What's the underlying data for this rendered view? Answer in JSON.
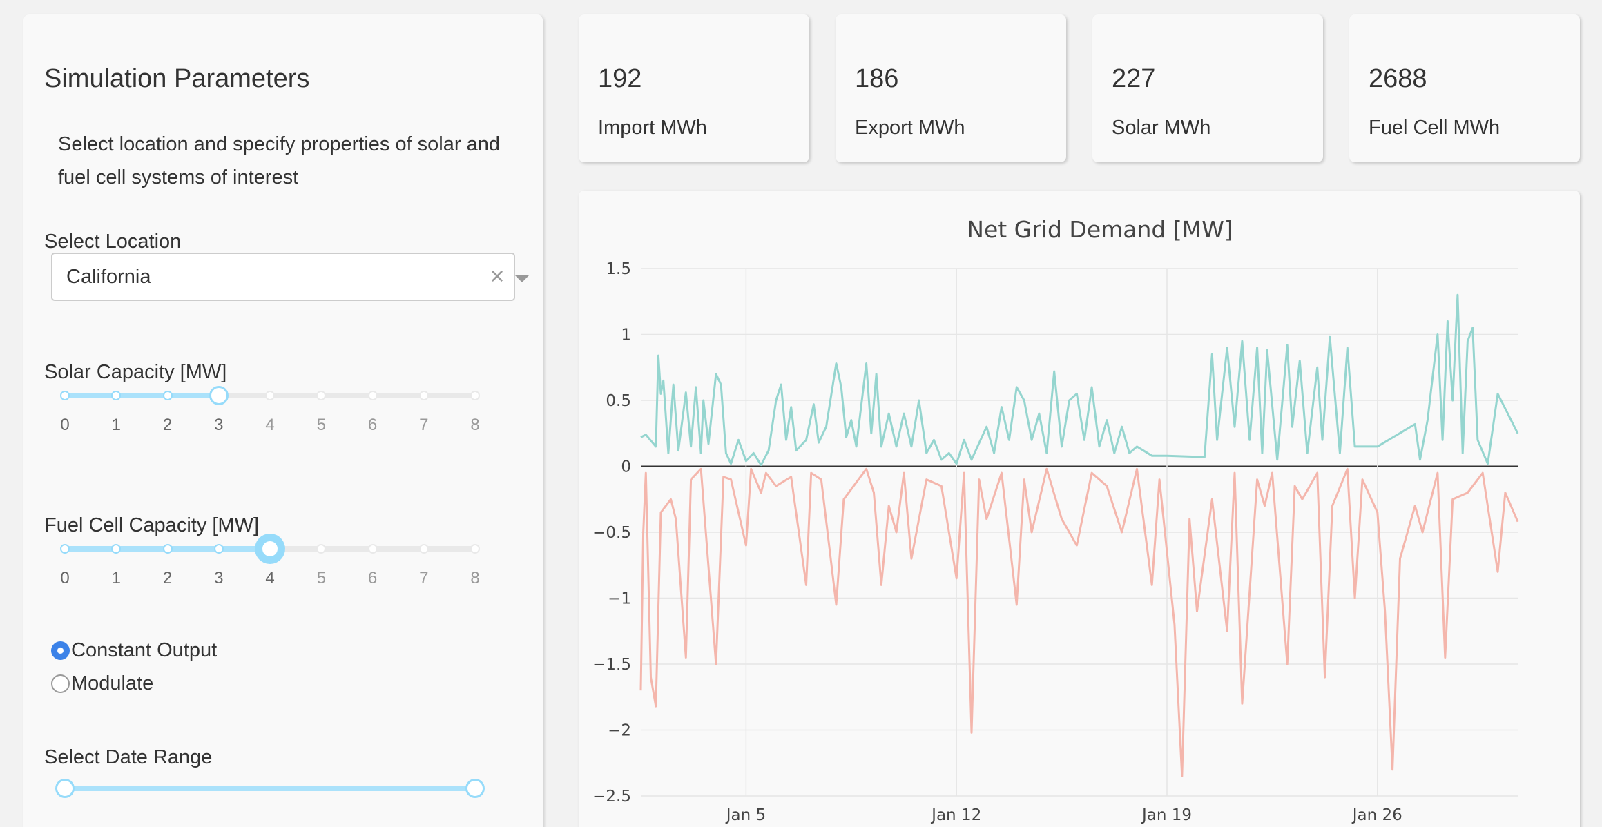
{
  "sidebar": {
    "title": "Simulation Parameters",
    "description": "Select location and specify properties of solar and fuel cell systems of interest",
    "location_label": "Select Location",
    "location_value": "California",
    "solar_label": "Solar Capacity [MW]",
    "solar_value": 3,
    "fuel_label": "Fuel Cell Capacity [MW]",
    "fuel_value": 4,
    "slider_marks": [
      "0",
      "1",
      "2",
      "3",
      "4",
      "5",
      "6",
      "7",
      "8"
    ],
    "radio_options": [
      {
        "label": "Constant Output",
        "checked": true
      },
      {
        "label": "Modulate",
        "checked": false
      }
    ],
    "date_range_label": "Select Date Range",
    "date_range": [
      0,
      1
    ]
  },
  "stats": [
    {
      "value": "192",
      "label": "Import MWh"
    },
    {
      "value": "186",
      "label": "Export MWh"
    },
    {
      "value": "227",
      "label": "Solar MWh"
    },
    {
      "value": "2688",
      "label": "Fuel Cell MWh"
    }
  ],
  "colors": {
    "positive_series": "#95d5cf",
    "negative_series": "#f4b6ac",
    "slider_accent": "#96dbfa",
    "radio_accent": "#3b82e8"
  },
  "chart_data": {
    "type": "line",
    "title": "Net Grid Demand [MW]",
    "xlabel": "",
    "ylabel": "",
    "x_ticks": [
      "Jan 5",
      "Jan 12",
      "Jan 19",
      "Jan 26"
    ],
    "y_ticks": [
      "1.5",
      "1",
      "0.5",
      "0",
      "−0.5",
      "−1",
      "−1.5",
      "−2",
      "−2.5"
    ],
    "ylim": [
      -2.5,
      1.5
    ],
    "xlim": [
      "2019-01-01 12:00",
      "2019-01-30 16:00"
    ],
    "grid": true,
    "series": [
      {
        "values": [
          [
            "2019-01-01 12:00",
            0.22
          ],
          [
            "2019-01-01 16:00",
            0.24
          ],
          [
            "2019-01-02 00:00",
            0.15
          ],
          [
            "2019-01-02 02:00",
            0.84
          ],
          [
            "2019-01-02 04:00",
            0.55
          ],
          [
            "2019-01-02 06:00",
            0.65
          ],
          [
            "2019-01-02 10:00",
            0.1
          ],
          [
            "2019-01-02 14:00",
            0.62
          ],
          [
            "2019-01-02 18:00",
            0.12
          ],
          [
            "2019-01-03 00:00",
            0.56
          ],
          [
            "2019-01-03 04:00",
            0.15
          ],
          [
            "2019-01-03 08:00",
            0.6
          ],
          [
            "2019-01-03 12:00",
            0.1
          ],
          [
            "2019-01-03 14:00",
            0.5
          ],
          [
            "2019-01-03 18:00",
            0.17
          ],
          [
            "2019-01-04 00:00",
            0.7
          ],
          [
            "2019-01-04 04:00",
            0.62
          ],
          [
            "2019-01-04 08:00",
            0.1
          ],
          [
            "2019-01-04 12:00",
            0.02
          ],
          [
            "2019-01-04 18:00",
            0.2
          ],
          [
            "2019-01-05 00:00",
            0.04
          ],
          [
            "2019-01-05 06:00",
            0.1
          ],
          [
            "2019-01-05 12:00",
            0.01
          ],
          [
            "2019-01-05 18:00",
            0.12
          ],
          [
            "2019-01-06 00:00",
            0.5
          ],
          [
            "2019-01-06 04:00",
            0.62
          ],
          [
            "2019-01-06 08:00",
            0.2
          ],
          [
            "2019-01-06 12:00",
            0.45
          ],
          [
            "2019-01-06 16:00",
            0.12
          ],
          [
            "2019-01-07 00:00",
            0.2
          ],
          [
            "2019-01-07 06:00",
            0.47
          ],
          [
            "2019-01-07 10:00",
            0.18
          ],
          [
            "2019-01-07 16:00",
            0.3
          ],
          [
            "2019-01-08 00:00",
            0.78
          ],
          [
            "2019-01-08 04:00",
            0.6
          ],
          [
            "2019-01-08 08:00",
            0.22
          ],
          [
            "2019-01-08 12:00",
            0.35
          ],
          [
            "2019-01-08 16:00",
            0.15
          ],
          [
            "2019-01-09 00:00",
            0.78
          ],
          [
            "2019-01-09 04:00",
            0.25
          ],
          [
            "2019-01-09 08:00",
            0.7
          ],
          [
            "2019-01-09 12:00",
            0.15
          ],
          [
            "2019-01-09 18:00",
            0.4
          ],
          [
            "2019-01-10 00:00",
            0.15
          ],
          [
            "2019-01-10 06:00",
            0.4
          ],
          [
            "2019-01-10 12:00",
            0.15
          ],
          [
            "2019-01-10 18:00",
            0.5
          ],
          [
            "2019-01-11 00:00",
            0.1
          ],
          [
            "2019-01-11 06:00",
            0.2
          ],
          [
            "2019-01-11 12:00",
            0.05
          ],
          [
            "2019-01-11 18:00",
            0.1
          ],
          [
            "2019-01-12 00:00",
            0.02
          ],
          [
            "2019-01-12 06:00",
            0.2
          ],
          [
            "2019-01-12 12:00",
            0.05
          ],
          [
            "2019-01-13 00:00",
            0.3
          ],
          [
            "2019-01-13 06:00",
            0.1
          ],
          [
            "2019-01-13 12:00",
            0.45
          ],
          [
            "2019-01-13 18:00",
            0.2
          ],
          [
            "2019-01-14 00:00",
            0.6
          ],
          [
            "2019-01-14 06:00",
            0.5
          ],
          [
            "2019-01-14 12:00",
            0.2
          ],
          [
            "2019-01-14 18:00",
            0.4
          ],
          [
            "2019-01-15 00:00",
            0.1
          ],
          [
            "2019-01-15 06:00",
            0.72
          ],
          [
            "2019-01-15 12:00",
            0.15
          ],
          [
            "2019-01-15 18:00",
            0.5
          ],
          [
            "2019-01-16 00:00",
            0.55
          ],
          [
            "2019-01-16 06:00",
            0.2
          ],
          [
            "2019-01-16 12:00",
            0.6
          ],
          [
            "2019-01-16 18:00",
            0.15
          ],
          [
            "2019-01-17 00:00",
            0.35
          ],
          [
            "2019-01-17 06:00",
            0.1
          ],
          [
            "2019-01-17 12:00",
            0.3
          ],
          [
            "2019-01-17 18:00",
            0.1
          ],
          [
            "2019-01-18 00:00",
            0.15
          ],
          [
            "2019-01-18 12:00",
            0.08
          ],
          [
            "2019-01-19 00:00",
            0.08
          ],
          [
            "2019-01-20 06:00",
            0.07
          ],
          [
            "2019-01-20 12:00",
            0.85
          ],
          [
            "2019-01-20 16:00",
            0.2
          ],
          [
            "2019-01-21 00:00",
            0.9
          ],
          [
            "2019-01-21 06:00",
            0.3
          ],
          [
            "2019-01-21 12:00",
            0.95
          ],
          [
            "2019-01-21 18:00",
            0.2
          ],
          [
            "2019-01-22 00:00",
            0.9
          ],
          [
            "2019-01-22 04:00",
            0.1
          ],
          [
            "2019-01-22 08:00",
            0.88
          ],
          [
            "2019-01-22 16:00",
            0.05
          ],
          [
            "2019-01-23 00:00",
            0.92
          ],
          [
            "2019-01-23 04:00",
            0.3
          ],
          [
            "2019-01-23 10:00",
            0.8
          ],
          [
            "2019-01-23 16:00",
            0.1
          ],
          [
            "2019-01-24 00:00",
            0.75
          ],
          [
            "2019-01-24 04:00",
            0.2
          ],
          [
            "2019-01-24 10:00",
            0.98
          ],
          [
            "2019-01-24 18:00",
            0.1
          ],
          [
            "2019-01-25 00:00",
            0.9
          ],
          [
            "2019-01-25 06:00",
            0.15
          ],
          [
            "2019-01-26 00:00",
            0.15
          ],
          [
            "2019-01-27 06:00",
            0.32
          ],
          [
            "2019-01-27 10:00",
            0.05
          ],
          [
            "2019-01-27 16:00",
            0.35
          ],
          [
            "2019-01-28 00:00",
            1.0
          ],
          [
            "2019-01-28 04:00",
            0.2
          ],
          [
            "2019-01-28 08:00",
            1.1
          ],
          [
            "2019-01-28 12:00",
            0.5
          ],
          [
            "2019-01-28 16:00",
            1.3
          ],
          [
            "2019-01-28 20:00",
            0.1
          ],
          [
            "2019-01-29 00:00",
            0.95
          ],
          [
            "2019-01-29 04:00",
            1.05
          ],
          [
            "2019-01-29 08:00",
            0.2
          ],
          [
            "2019-01-29 16:00",
            0.02
          ],
          [
            "2019-01-30 00:00",
            0.55
          ],
          [
            "2019-01-30 08:00",
            0.4
          ],
          [
            "2019-01-30 16:00",
            0.25
          ]
        ]
      },
      {
        "values": [
          [
            "2019-01-01 12:00",
            -1.7
          ],
          [
            "2019-01-01 14:00",
            -0.5
          ],
          [
            "2019-01-01 16:00",
            -0.05
          ],
          [
            "2019-01-01 20:00",
            -1.6
          ],
          [
            "2019-01-02 00:00",
            -1.82
          ],
          [
            "2019-01-02 04:00",
            -0.35
          ],
          [
            "2019-01-02 12:00",
            -0.25
          ],
          [
            "2019-01-02 16:00",
            -0.4
          ],
          [
            "2019-01-03 00:00",
            -1.45
          ],
          [
            "2019-01-03 04:00",
            -0.1
          ],
          [
            "2019-01-03 12:00",
            -0.02
          ],
          [
            "2019-01-04 00:00",
            -1.5
          ],
          [
            "2019-01-04 06:00",
            -0.08
          ],
          [
            "2019-01-04 12:00",
            -0.1
          ],
          [
            "2019-01-05 00:00",
            -0.6
          ],
          [
            "2019-01-05 04:00",
            -0.02
          ],
          [
            "2019-01-05 12:00",
            -0.2
          ],
          [
            "2019-01-05 16:00",
            -0.05
          ],
          [
            "2019-01-06 00:00",
            -0.15
          ],
          [
            "2019-01-06 12:00",
            -0.08
          ],
          [
            "2019-01-07 00:00",
            -0.9
          ],
          [
            "2019-01-07 04:00",
            -0.05
          ],
          [
            "2019-01-07 12:00",
            -0.1
          ],
          [
            "2019-01-08 00:00",
            -1.05
          ],
          [
            "2019-01-08 06:00",
            -0.25
          ],
          [
            "2019-01-09 00:00",
            -0.02
          ],
          [
            "2019-01-09 06:00",
            -0.2
          ],
          [
            "2019-01-09 12:00",
            -0.9
          ],
          [
            "2019-01-09 18:00",
            -0.3
          ],
          [
            "2019-01-10 00:00",
            -0.5
          ],
          [
            "2019-01-10 06:00",
            -0.05
          ],
          [
            "2019-01-10 12:00",
            -0.7
          ],
          [
            "2019-01-11 00:00",
            -0.1
          ],
          [
            "2019-01-11 12:00",
            -0.15
          ],
          [
            "2019-01-12 00:00",
            -0.85
          ],
          [
            "2019-01-12 06:00",
            -0.05
          ],
          [
            "2019-01-12 12:00",
            -2.02
          ],
          [
            "2019-01-12 18:00",
            -0.1
          ],
          [
            "2019-01-13 00:00",
            -0.4
          ],
          [
            "2019-01-13 12:00",
            -0.05
          ],
          [
            "2019-01-14 00:00",
            -1.05
          ],
          [
            "2019-01-14 06:00",
            -0.1
          ],
          [
            "2019-01-14 12:00",
            -0.5
          ],
          [
            "2019-01-15 00:00",
            -0.02
          ],
          [
            "2019-01-15 12:00",
            -0.4
          ],
          [
            "2019-01-16 00:00",
            -0.6
          ],
          [
            "2019-01-16 12:00",
            -0.05
          ],
          [
            "2019-01-17 00:00",
            -0.15
          ],
          [
            "2019-01-17 12:00",
            -0.5
          ],
          [
            "2019-01-18 00:00",
            -0.02
          ],
          [
            "2019-01-18 12:00",
            -0.9
          ],
          [
            "2019-01-18 18:00",
            -0.1
          ],
          [
            "2019-01-19 06:00",
            -1.2
          ],
          [
            "2019-01-19 12:00",
            -2.35
          ],
          [
            "2019-01-19 18:00",
            -0.4
          ],
          [
            "2019-01-20 00:00",
            -1.1
          ],
          [
            "2019-01-20 12:00",
            -0.25
          ],
          [
            "2019-01-21 00:00",
            -1.25
          ],
          [
            "2019-01-21 06:00",
            -0.05
          ],
          [
            "2019-01-21 12:00",
            -1.8
          ],
          [
            "2019-01-22 00:00",
            -0.1
          ],
          [
            "2019-01-22 06:00",
            -0.3
          ],
          [
            "2019-01-22 12:00",
            -0.05
          ],
          [
            "2019-01-23 00:00",
            -1.5
          ],
          [
            "2019-01-23 06:00",
            -0.15
          ],
          [
            "2019-01-23 12:00",
            -0.25
          ],
          [
            "2019-01-24 00:00",
            -0.05
          ],
          [
            "2019-01-24 06:00",
            -1.6
          ],
          [
            "2019-01-24 12:00",
            -0.3
          ],
          [
            "2019-01-25 00:00",
            -0.02
          ],
          [
            "2019-01-25 06:00",
            -1.0
          ],
          [
            "2019-01-25 12:00",
            -0.1
          ],
          [
            "2019-01-26 00:00",
            -0.35
          ],
          [
            "2019-01-26 06:00",
            -1.1
          ],
          [
            "2019-01-26 12:00",
            -2.3
          ],
          [
            "2019-01-26 18:00",
            -0.7
          ],
          [
            "2019-01-27 06:00",
            -0.3
          ],
          [
            "2019-01-27 12:00",
            -0.5
          ],
          [
            "2019-01-28 00:00",
            -0.05
          ],
          [
            "2019-01-28 06:00",
            -1.45
          ],
          [
            "2019-01-28 12:00",
            -0.25
          ],
          [
            "2019-01-29 00:00",
            -0.2
          ],
          [
            "2019-01-29 12:00",
            -0.05
          ],
          [
            "2019-01-30 00:00",
            -0.8
          ],
          [
            "2019-01-30 06:00",
            -0.2
          ],
          [
            "2019-01-30 16:00",
            -0.42
          ]
        ]
      }
    ]
  }
}
